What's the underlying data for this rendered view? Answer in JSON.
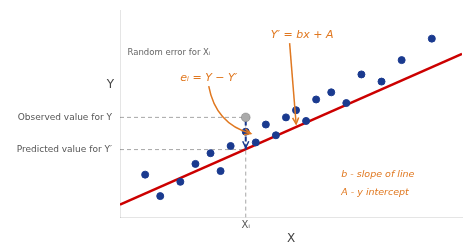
{
  "chart_data": {
    "type": "scatter",
    "x_label": "X",
    "y_label": "Y",
    "xlim": [
      3.0,
      9.8
    ],
    "ylim": [
      1.0,
      6.8
    ],
    "grid": false,
    "tick_labels": false,
    "series": [
      {
        "type": "scatter",
        "color": "#1a3a8f",
        "x": [
          3.5,
          3.8,
          4.2,
          4.5,
          4.8,
          5.0,
          5.2,
          5.5,
          5.7,
          5.9,
          6.1,
          6.3,
          6.5,
          6.7,
          6.9,
          7.2,
          7.5,
          7.8,
          8.2,
          8.6,
          9.2
        ],
        "values": [
          2.2,
          1.6,
          2.0,
          2.5,
          2.8,
          2.3,
          3.0,
          3.4,
          3.1,
          3.6,
          3.3,
          3.8,
          4.0,
          3.7,
          4.3,
          4.5,
          4.2,
          5.0,
          4.8,
          5.4,
          6.0
        ]
      },
      {
        "type": "line",
        "color": "#cc0000",
        "x": [
          3.0,
          9.8
        ],
        "values": [
          1.36,
          5.576
        ]
      }
    ],
    "xi": {
      "x": 5.5,
      "label": "Xᵢ"
    },
    "observed": {
      "y": 3.8,
      "label": "Observed value for Y",
      "color": "#aaaaaa"
    },
    "predicted": {
      "y": 2.9,
      "label": "Predicted value for Y′"
    },
    "annotations": [
      {
        "text": "Y′ = bx + A",
        "color": "#e07820"
      },
      {
        "text": "Random error for Xᵢ"
      },
      {
        "text": "eᵢ = Y − Y′",
        "color": "#e07820"
      },
      {
        "text": "b - slope of line",
        "color": "#e07820"
      },
      {
        "text": "A - y intercept",
        "color": "#e07820"
      }
    ]
  }
}
